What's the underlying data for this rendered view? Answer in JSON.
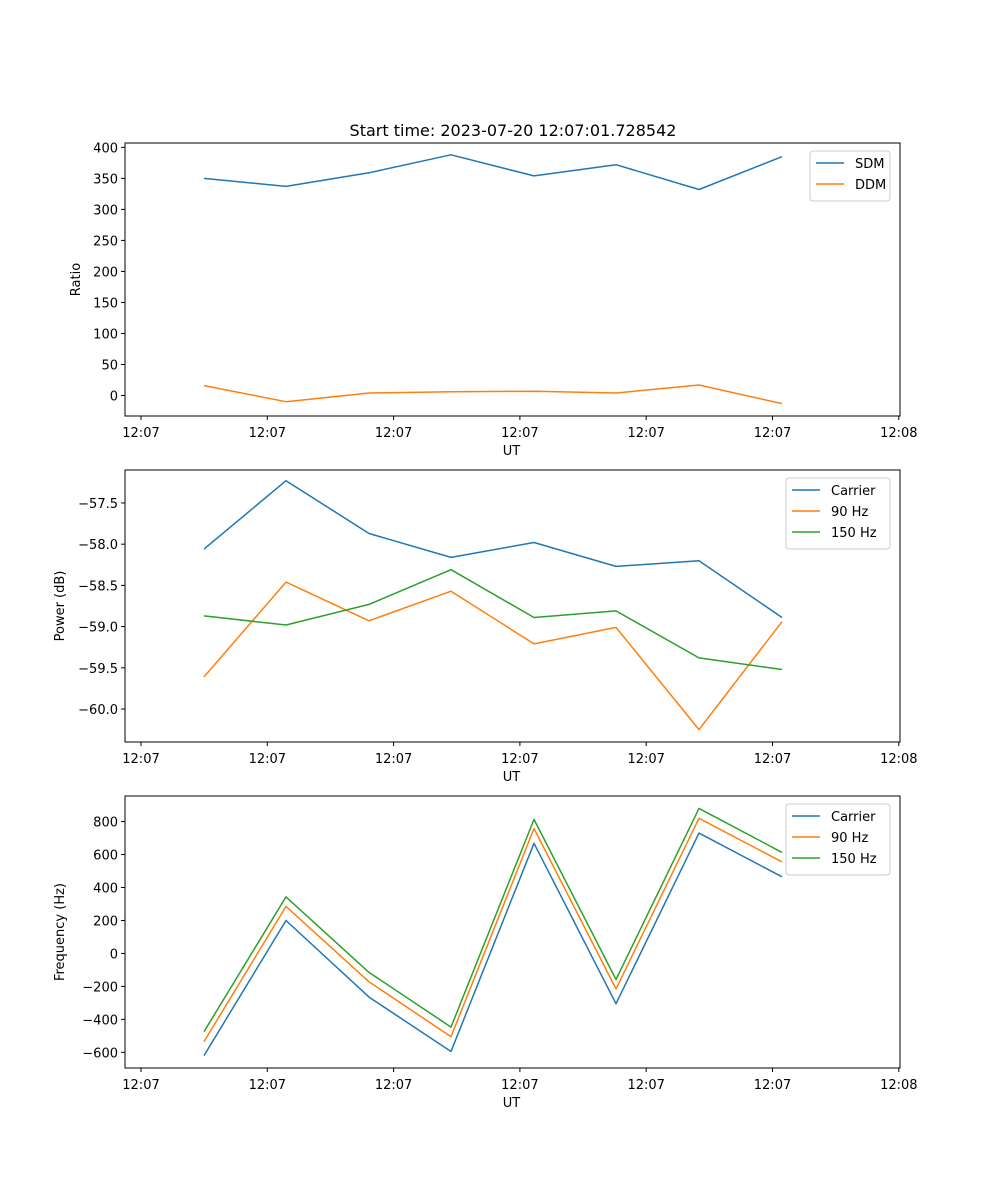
{
  "figure": {
    "title": "Start time: 2023-07-20 12:07:01.728542"
  },
  "chart_data": [
    {
      "type": "line",
      "title": "Start time: 2023-07-20 12:07:01.728542",
      "xlabel": "UT",
      "ylabel": "Ratio",
      "x_tick_labels": [
        "12:07",
        "12:07",
        "12:07",
        "12:07",
        "12:07",
        "12:07",
        "12:08"
      ],
      "y_ticks": [
        0,
        50,
        100,
        150,
        200,
        250,
        300,
        350,
        400
      ],
      "y_tick_labels": [
        "0",
        "50",
        "100",
        "150",
        "200",
        "250",
        "300",
        "350",
        "400"
      ],
      "ylim": [
        -33,
        407
      ],
      "legend_position": "top-right",
      "series": [
        {
          "name": "SDM",
          "color": "#1f77b4",
          "values": [
            350,
            337,
            359,
            388,
            354,
            372,
            332,
            385
          ]
        },
        {
          "name": "DDM",
          "color": "#ff7f0e",
          "values": [
            16,
            -10,
            4,
            6,
            7,
            4,
            17,
            -13
          ]
        }
      ]
    },
    {
      "type": "line",
      "xlabel": "UT",
      "ylabel": "Power (dB)",
      "x_tick_labels": [
        "12:07",
        "12:07",
        "12:07",
        "12:07",
        "12:07",
        "12:07",
        "12:08"
      ],
      "y_ticks": [
        -60.0,
        -59.5,
        -59.0,
        -58.5,
        -58.0,
        -57.5
      ],
      "y_tick_labels": [
        "−60.0",
        "−59.5",
        "−59.0",
        "−58.5",
        "−58.0",
        "−57.5"
      ],
      "ylim": [
        -60.4,
        -57.1
      ],
      "legend_position": "top-right",
      "series": [
        {
          "name": "Carrier",
          "color": "#1f77b4",
          "values": [
            -58.06,
            -57.23,
            -57.87,
            -58.16,
            -57.98,
            -58.27,
            -58.2,
            -58.89
          ]
        },
        {
          "name": "90 Hz",
          "color": "#ff7f0e",
          "values": [
            -59.61,
            -58.46,
            -58.93,
            -58.57,
            -59.21,
            -59.01,
            -60.25,
            -58.94
          ]
        },
        {
          "name": "150 Hz",
          "color": "#2ca02c",
          "values": [
            -58.87,
            -58.98,
            -58.73,
            -58.31,
            -58.89,
            -58.81,
            -59.38,
            -59.52
          ]
        }
      ]
    },
    {
      "type": "line",
      "xlabel": "UT",
      "ylabel": "Frequency (Hz)",
      "x_tick_labels": [
        "12:07",
        "12:07",
        "12:07",
        "12:07",
        "12:07",
        "12:07",
        "12:08"
      ],
      "y_ticks": [
        -600,
        -400,
        -200,
        0,
        200,
        400,
        600,
        800
      ],
      "y_tick_labels": [
        "−600",
        "−400",
        "−200",
        "0",
        "200",
        "400",
        "600",
        "800"
      ],
      "ylim": [
        -695,
        955
      ],
      "legend_position": "top-right",
      "series": [
        {
          "name": "Carrier",
          "color": "#1f77b4",
          "values": [
            -620,
            200,
            -265,
            -595,
            668,
            -305,
            730,
            465
          ]
        },
        {
          "name": "90 Hz",
          "color": "#ff7f0e",
          "values": [
            -535,
            285,
            -172,
            -505,
            758,
            -215,
            820,
            555
          ]
        },
        {
          "name": "150 Hz",
          "color": "#2ca02c",
          "values": [
            -475,
            343,
            -115,
            -447,
            813,
            -158,
            880,
            613
          ]
        }
      ]
    }
  ]
}
